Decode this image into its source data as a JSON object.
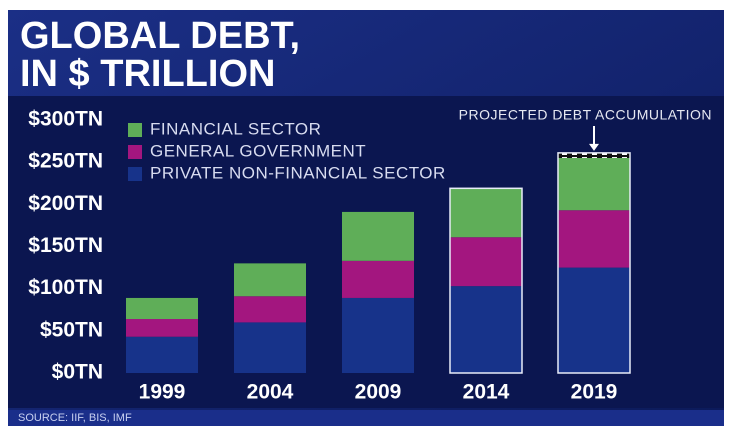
{
  "chart_data": {
    "type": "stacked_bar",
    "title": [
      "GLOBAL DEBT,",
      "IN $ TRILLION"
    ],
    "source": "SOURCE: IIF, BIS, IMF",
    "categories": [
      "1999",
      "2004",
      "2009",
      "2014",
      "2019"
    ],
    "series": [
      {
        "name": "FINANCIAL SECTOR",
        "color": "#5fae58",
        "values": [
          25,
          39,
          58,
          58,
          62
        ]
      },
      {
        "name": "GENERAL GOVERNMENT",
        "color": "#a3167f",
        "values": [
          21,
          31,
          44,
          58,
          68
        ]
      },
      {
        "name": "PRIVATE NON-FINANCIAL SECTOR",
        "color": "#17338a",
        "values": [
          43,
          60,
          89,
          103,
          125
        ]
      }
    ],
    "projected": {
      "label": "PROJECTED DEBT ACCUMULATION",
      "values": [
        null,
        null,
        null,
        null,
        6
      ]
    },
    "ylim": [
      0,
      300
    ],
    "yticks": [
      {
        "value": 0,
        "label": "$0TN"
      },
      {
        "value": 50,
        "label": "$50TN"
      },
      {
        "value": 100,
        "label": "$100TN"
      },
      {
        "value": 150,
        "label": "$150TN"
      },
      {
        "value": 200,
        "label": "$200TN"
      },
      {
        "value": 250,
        "label": "$250TN"
      },
      {
        "value": 300,
        "label": "$300TN"
      }
    ]
  }
}
